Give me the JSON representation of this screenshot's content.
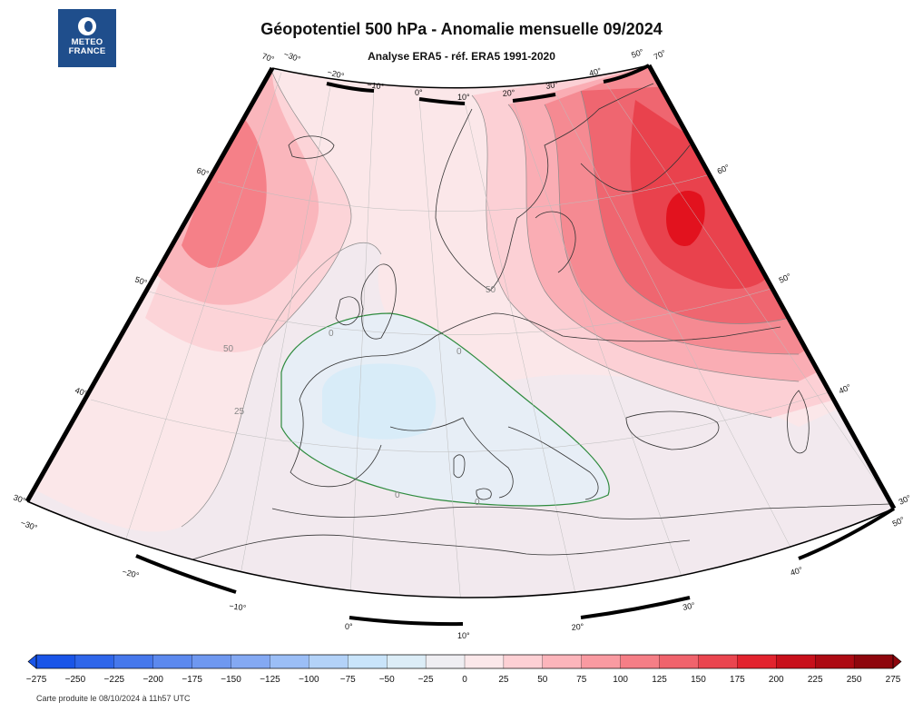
{
  "header": {
    "title": "Géopotentiel 500 hPa - Anomalie mensuelle 09/2024",
    "subtitle": "Analyse ERA5 - réf. ERA5 1991-2020"
  },
  "logo": {
    "line1": "METEO",
    "line2": "FRANCE"
  },
  "footer": {
    "note": "Carte produite le 08/10/2024 à 11h57 UTC"
  },
  "colorbar": {
    "ticks": [
      "−275",
      "−250",
      "−225",
      "−200",
      "−175",
      "−150",
      "−125",
      "−100",
      "−75",
      "−50",
      "−25",
      "0",
      "25",
      "50",
      "75",
      "100",
      "125",
      "150",
      "175",
      "200",
      "225",
      "250",
      "275"
    ],
    "colors": [
      "#1a55e8",
      "#2f66ea",
      "#4678ec",
      "#5c89ee",
      "#6f98f0",
      "#84a9f3",
      "#9bbef6",
      "#b3d2f8",
      "#c9e4fa",
      "#dcedf7",
      "#efeef2",
      "#fbe8ea",
      "#fdd0d4",
      "#fcb5bb",
      "#f99aa1",
      "#f57e86",
      "#f0636c",
      "#ea454f",
      "#e2232e",
      "#c8101b",
      "#ad0a13",
      "#8e060d"
    ]
  },
  "map": {
    "legend_labels": {
      "anomaly_50_west": "50",
      "anomaly_25_west": "25",
      "anomaly_50_north": "50",
      "anomaly_zero_a": "0",
      "anomaly_zero_b": "0",
      "anomaly_zero_c": "0",
      "anomaly_zero_d": "0"
    },
    "lat_labels_left": [
      "70°",
      "60°",
      "50°",
      "40°",
      "30°"
    ],
    "lat_labels_right": [
      "70°",
      "60°",
      "50°",
      "40°",
      "30°"
    ],
    "lon_labels_top": [
      "−30°",
      "−20°",
      "−10°",
      "0°",
      "10°",
      "20°",
      "30°",
      "40°",
      "50°"
    ],
    "lon_labels_bottom": [
      "−30°",
      "−20°",
      "−10°",
      "0°",
      "10°",
      "20°",
      "30°",
      "40°",
      "50°"
    ]
  },
  "colors": {
    "zero_contour": "#2e8b3e",
    "frame": "#000000",
    "land_outline": "#333333"
  }
}
